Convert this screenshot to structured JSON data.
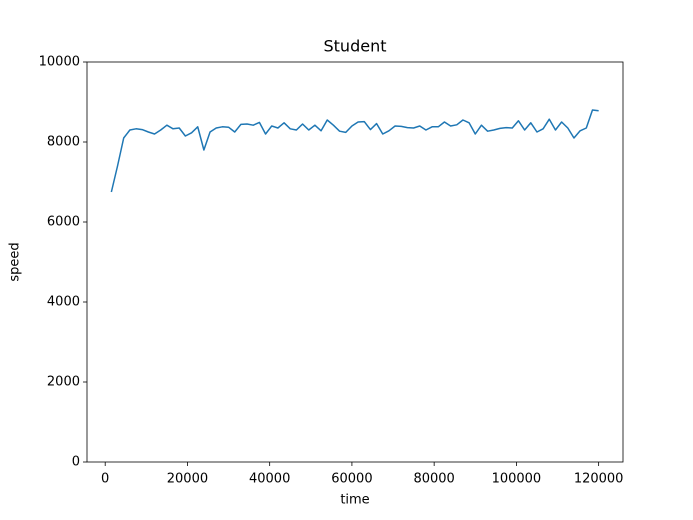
{
  "chart_data": {
    "type": "line",
    "title": "Student",
    "x_label": "time",
    "y_label": "speed",
    "x": [
      1500,
      3000,
      4500,
      6000,
      7500,
      9000,
      10500,
      12000,
      13500,
      15000,
      16500,
      18000,
      19500,
      21000,
      22500,
      24000,
      25500,
      27000,
      28500,
      30000,
      31500,
      33000,
      34500,
      36000,
      37500,
      39000,
      40500,
      42000,
      43500,
      45000,
      46500,
      48000,
      49500,
      51000,
      52500,
      54000,
      55500,
      57000,
      58500,
      60000,
      61500,
      63000,
      64500,
      66000,
      67500,
      69000,
      70500,
      72000,
      73500,
      75000,
      76500,
      78000,
      79500,
      81000,
      82500,
      84000,
      85500,
      87000,
      88500,
      90000,
      91500,
      93000,
      94500,
      96000,
      97500,
      99000,
      100500,
      102000,
      103500,
      105000,
      106500,
      108000,
      109500,
      111000,
      112500,
      114000,
      115500,
      117000,
      118500,
      120000
    ],
    "series": [
      {
        "name": "speed",
        "color": "#1f77b4",
        "values": [
          6750,
          7400,
          8100,
          8300,
          8330,
          8310,
          8250,
          8200,
          8300,
          8420,
          8330,
          8350,
          8150,
          8230,
          8380,
          7800,
          8250,
          8350,
          8380,
          8370,
          8250,
          8440,
          8450,
          8420,
          8490,
          8200,
          8400,
          8350,
          8480,
          8330,
          8300,
          8450,
          8300,
          8420,
          8280,
          8550,
          8420,
          8270,
          8240,
          8400,
          8500,
          8510,
          8310,
          8460,
          8200,
          8280,
          8400,
          8390,
          8360,
          8350,
          8400,
          8300,
          8380,
          8380,
          8500,
          8400,
          8430,
          8550,
          8480,
          8200,
          8420,
          8270,
          8300,
          8340,
          8360,
          8350,
          8530,
          8300,
          8480,
          8250,
          8330,
          8570,
          8300,
          8500,
          8350,
          8100,
          8280,
          8350,
          8800,
          8780
        ]
      }
    ],
    "xlim": [
      -4425,
      125925
    ],
    "ylim": [
      0,
      10000
    ],
    "xticks": [
      0,
      20000,
      40000,
      60000,
      80000,
      100000,
      120000
    ],
    "yticks": [
      0,
      2000,
      4000,
      6000,
      8000,
      10000
    ],
    "grid": false
  }
}
